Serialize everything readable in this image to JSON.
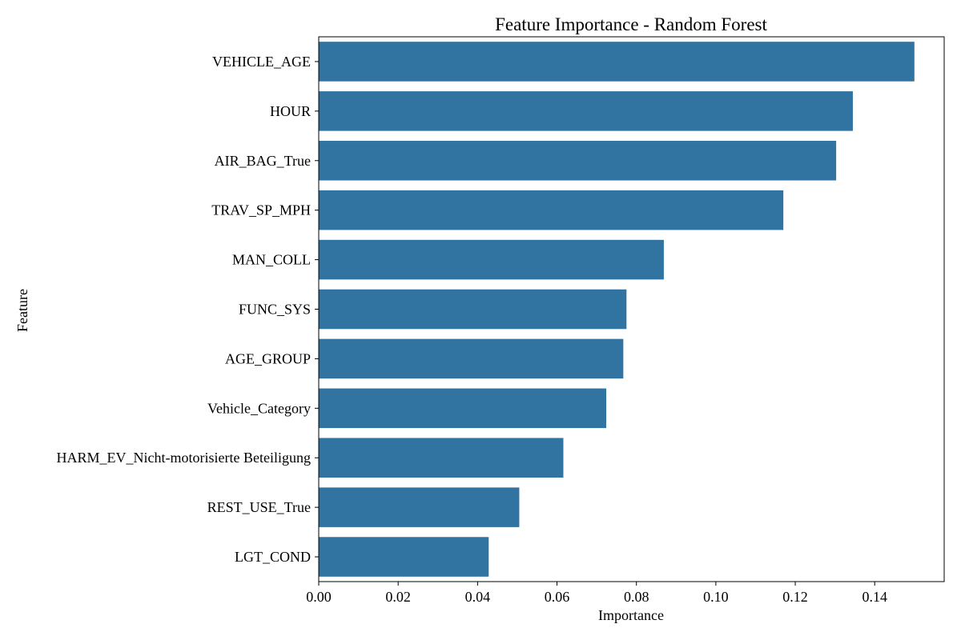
{
  "chart_data": {
    "type": "bar",
    "orientation": "horizontal",
    "title": "Feature Importance - Random Forest",
    "xlabel": "Importance",
    "ylabel": "Feature",
    "categories": [
      "VEHICLE_AGE",
      "HOUR",
      "AIR_BAG_True",
      "TRAV_SP_MPH",
      "MAN_COLL",
      "FUNC_SYS",
      "AGE_GROUP",
      "Vehicle_Category",
      "HARM_EV_Nicht-motorisierte Beteiligung",
      "REST_USE_True",
      "LGT_COND"
    ],
    "values": [
      0.15,
      0.1345,
      0.1303,
      0.117,
      0.0869,
      0.0775,
      0.0767,
      0.0724,
      0.0616,
      0.0505,
      0.0428
    ],
    "xlim": [
      0,
      0.1575
    ],
    "xticks": [
      0.0,
      0.02,
      0.04,
      0.06,
      0.08,
      0.1,
      0.12,
      0.14
    ],
    "xtick_labels": [
      "0.00",
      "0.02",
      "0.04",
      "0.06",
      "0.08",
      "0.10",
      "0.12",
      "0.14"
    ],
    "bar_color": "#3274a1",
    "grid": false,
    "legend": "none"
  }
}
